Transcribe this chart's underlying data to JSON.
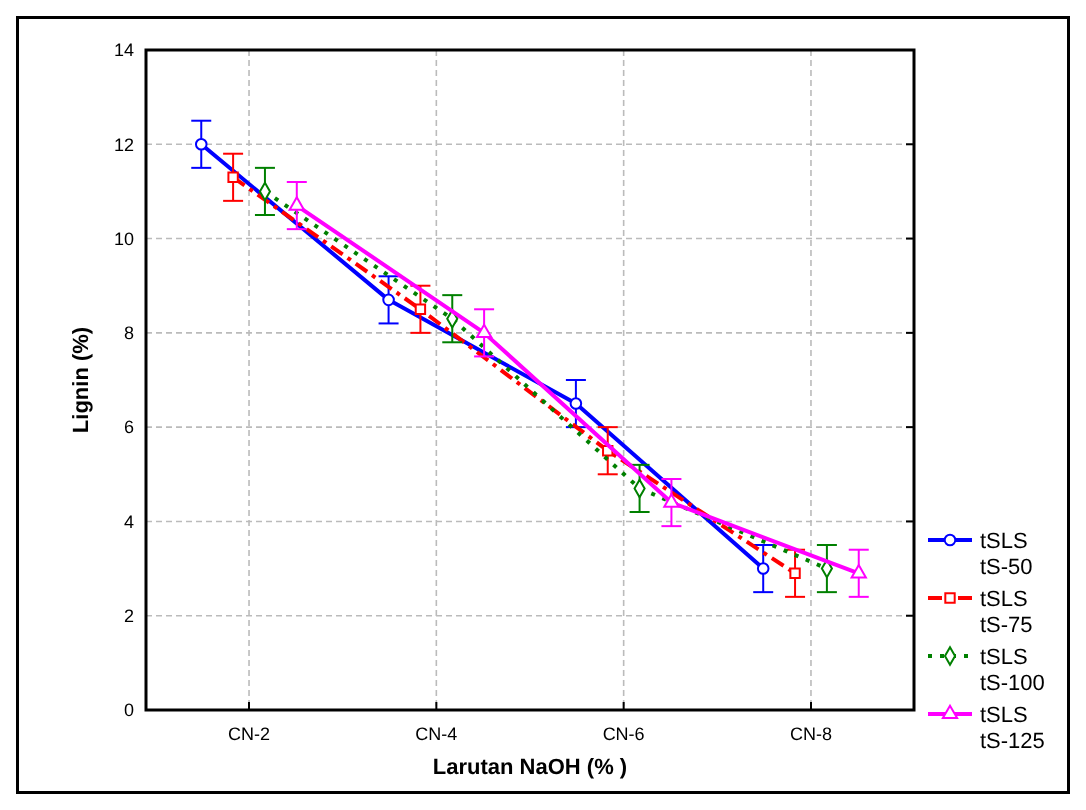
{
  "chart_data": {
    "type": "line",
    "xlabel": "Larutan NaOH (% )",
    "ylabel": "Lignin (%)",
    "categories": [
      "CN-2",
      "CN-4",
      "CN-6",
      "CN-8"
    ],
    "ylim": [
      0,
      14
    ],
    "yticks": [
      0,
      2,
      4,
      6,
      8,
      10,
      12,
      14
    ],
    "grid": true,
    "legend": "right",
    "series": [
      {
        "name": "tSLS tS-50",
        "color": "#0000ff",
        "marker": "circle",
        "line_style": "solid",
        "values": [
          12.0,
          8.7,
          6.5,
          3.0
        ],
        "errors": [
          0.5,
          0.5,
          0.5,
          0.5
        ]
      },
      {
        "name": "tSLS tS-75",
        "color": "#ff0000",
        "marker": "square",
        "line_style": "dashed",
        "values": [
          11.3,
          8.5,
          5.5,
          2.9
        ],
        "errors": [
          0.5,
          0.5,
          0.5,
          0.5
        ]
      },
      {
        "name": "tSLS tS-100",
        "color": "#008000",
        "marker": "diamond",
        "line_style": "dotted",
        "values": [
          11.0,
          8.3,
          4.7,
          3.0
        ],
        "errors": [
          0.5,
          0.5,
          0.5,
          0.5
        ]
      },
      {
        "name": "tSLS tS-125",
        "color": "#ff00ff",
        "marker": "triangle",
        "line_style": "solid",
        "values": [
          10.7,
          8.0,
          4.4,
          2.9
        ],
        "errors": [
          0.5,
          0.5,
          0.5,
          0.5
        ]
      }
    ]
  }
}
